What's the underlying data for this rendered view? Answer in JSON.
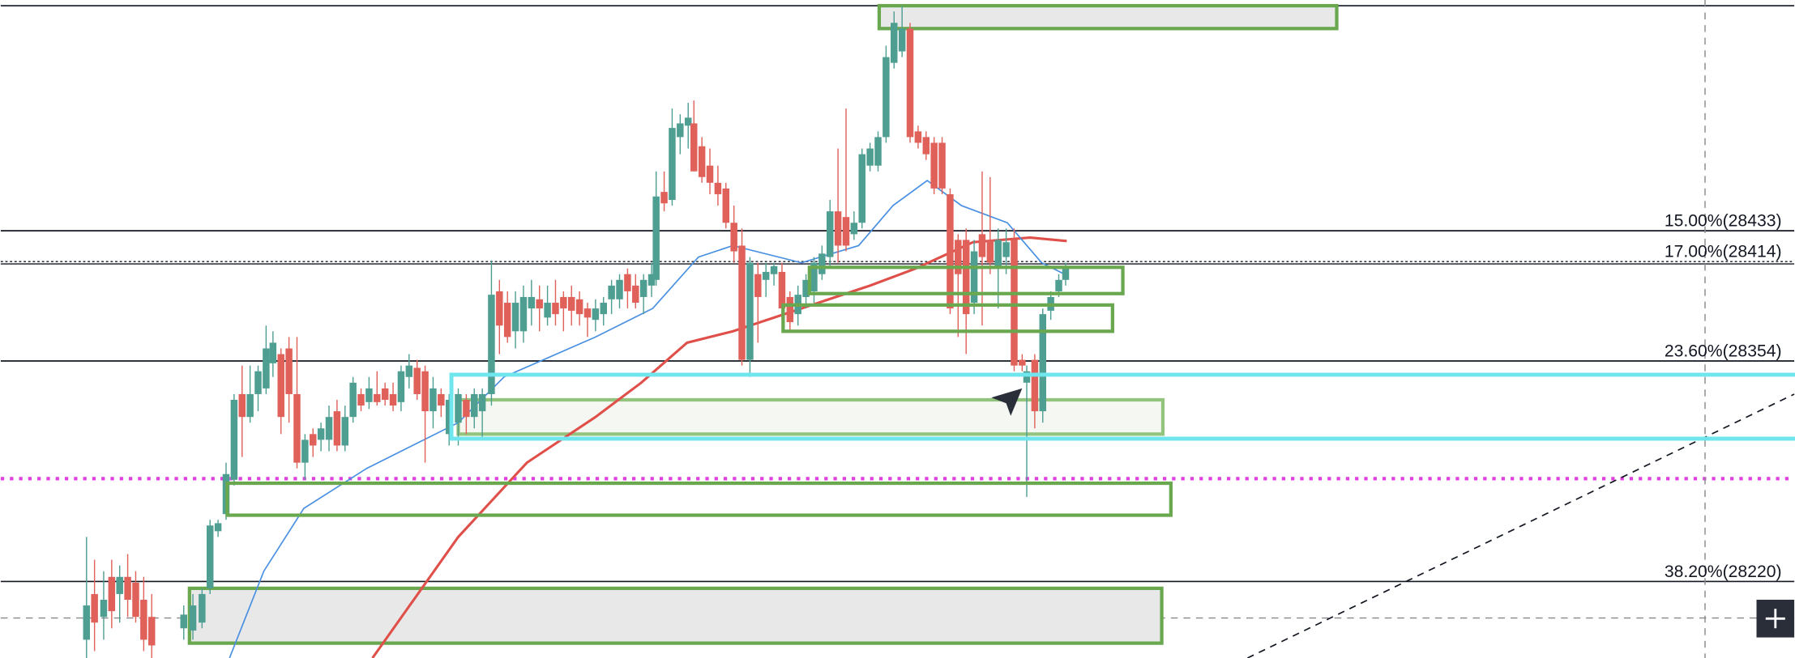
{
  "fib_labels": [
    "15.00%(28433)",
    "17.00%(28414)",
    "23.60%(28354)",
    "38.20%(28220)"
  ]
}
